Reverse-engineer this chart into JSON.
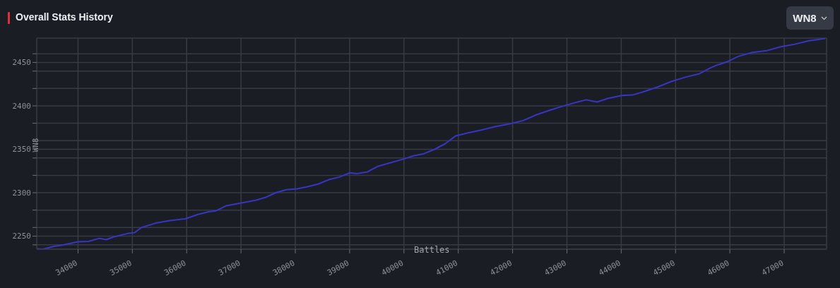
{
  "chart_data": {
    "type": "line",
    "title": "Overall Stats History",
    "xlabel": "Battles",
    "ylabel": "WN8",
    "annotations": [
      "WN8"
    ],
    "x": [
      33246,
      33350,
      33545,
      33740,
      34000,
      34195,
      34390,
      34520,
      34650,
      34910,
      35040,
      35170,
      35430,
      35690,
      35975,
      36210,
      36405,
      36535,
      36730,
      36990,
      37250,
      37445,
      37640,
      37835,
      38030,
      38225,
      38420,
      38615,
      38810,
      39005,
      39135,
      39330,
      39525,
      39720,
      39980,
      40175,
      40370,
      40565,
      40760,
      40955,
      41150,
      41410,
      41670,
      41930,
      42190,
      42450,
      42710,
      42970,
      43230,
      43360,
      43555,
      43750,
      44010,
      44205,
      44400,
      44660,
      44920,
      45180,
      45440,
      45635,
      45765,
      45960,
      46155,
      46415,
      46675,
      46935,
      47195,
      47455,
      47755
    ],
    "series": [
      {
        "color": "#3935c4",
        "values": [
          2235.5,
          2235,
          2238,
          2240,
          2243.5,
          2244,
          2247.5,
          2246,
          2249,
          2253,
          2254,
          2260,
          2265,
          2268,
          2270,
          2275,
          2278,
          2279,
          2285,
          2288,
          2291,
          2294.5,
          2300,
          2303.5,
          2304.5,
          2307,
          2310,
          2315,
          2318,
          2323,
          2322,
          2324,
          2330.5,
          2334,
          2338.5,
          2342.5,
          2345,
          2350,
          2356.5,
          2365.5,
          2368.5,
          2372,
          2376,
          2379,
          2383,
          2390,
          2395.5,
          2400.5,
          2405,
          2407,
          2404.5,
          2408.5,
          2412,
          2412.5,
          2416,
          2421.5,
          2428,
          2433,
          2437,
          2443.5,
          2447,
          2451,
          2457,
          2461.5,
          2463.5,
          2468,
          2471,
          2475,
          2477.5
        ]
      }
    ],
    "xlim": [
      33240,
      47780
    ],
    "xticks": [
      34000,
      35000,
      36000,
      37000,
      38000,
      39000,
      40000,
      41000,
      42000,
      43000,
      44000,
      45000,
      46000,
      47000
    ],
    "ylim": [
      2235,
      2478
    ],
    "yticks": [
      {
        "value": 2240,
        "label": null
      },
      2250,
      {
        "value": 2260,
        "label": null
      },
      {
        "value": 2280,
        "label": null
      },
      2300,
      {
        "value": 2320,
        "label": null
      },
      {
        "value": 2340,
        "label": null
      },
      2350,
      {
        "value": 2360,
        "label": null
      },
      {
        "value": 2380,
        "label": null
      },
      2400,
      {
        "value": 2420,
        "label": null
      },
      {
        "value": 2440,
        "label": null
      },
      2450,
      {
        "value": 2460,
        "label": null
      }
    ],
    "grid": true,
    "marker": "none",
    "line_style": "solid"
  }
}
